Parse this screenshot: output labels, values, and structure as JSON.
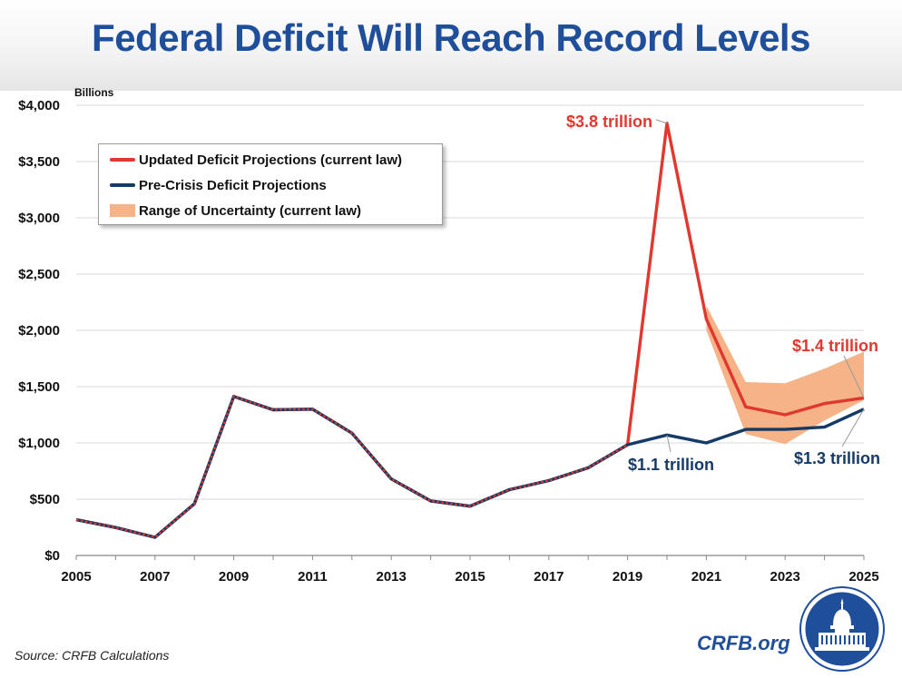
{
  "title": "Federal Deficit Will Reach Record Levels",
  "source": "Source: CRFB Calculations",
  "brand": "CRFB.org",
  "colors": {
    "updated": "#e0382e",
    "precrisis": "#163a66",
    "range": "#f6b387",
    "title": "#1f4e9b"
  },
  "chart_data": {
    "type": "line",
    "ylabel": "Billions",
    "ylim": [
      0,
      4000
    ],
    "yticks": [
      0,
      500,
      1000,
      1500,
      2000,
      2500,
      3000,
      3500,
      4000
    ],
    "ytick_labels": [
      "$0",
      "$500",
      "$1,000",
      "$1,500",
      "$2,000",
      "$2,500",
      "$3,000",
      "$3,500",
      "$4,000"
    ],
    "xlim": [
      2005,
      2025
    ],
    "xticks": [
      2005,
      2007,
      2009,
      2011,
      2013,
      2015,
      2017,
      2019,
      2021,
      2023,
      2025
    ],
    "xtick_labels": [
      "2005",
      "2007",
      "2009",
      "2011",
      "2013",
      "2015",
      "2017",
      "2019",
      "2021",
      "2023",
      "2025"
    ],
    "grid": true,
    "legend_position": "top-left",
    "series": [
      {
        "name": "Updated Deficit Projections (current law)",
        "x": [
          2005,
          2006,
          2007,
          2008,
          2009,
          2010,
          2011,
          2012,
          2013,
          2014,
          2015,
          2016,
          2017,
          2018,
          2019,
          2020,
          2021,
          2022,
          2023,
          2024,
          2025
        ],
        "values": [
          318,
          248,
          161,
          459,
          1413,
          1294,
          1300,
          1087,
          680,
          485,
          438,
          585,
          665,
          779,
          984,
          3840,
          2100,
          1320,
          1250,
          1350,
          1400
        ]
      },
      {
        "name": "Pre-Crisis Deficit Projections",
        "x": [
          2005,
          2006,
          2007,
          2008,
          2009,
          2010,
          2011,
          2012,
          2013,
          2014,
          2015,
          2016,
          2017,
          2018,
          2019,
          2020,
          2021,
          2022,
          2023,
          2024,
          2025
        ],
        "values": [
          318,
          248,
          161,
          459,
          1413,
          1294,
          1300,
          1087,
          680,
          485,
          438,
          585,
          665,
          779,
          984,
          1070,
          1000,
          1120,
          1120,
          1140,
          1300
        ]
      }
    ],
    "range": {
      "name": "Range of Uncertainty (current law)",
      "x": [
        2021,
        2022,
        2023,
        2024,
        2025
      ],
      "low": [
        2000,
        1080,
        990,
        1200,
        1380
      ],
      "high": [
        2220,
        1540,
        1530,
        1660,
        1810
      ]
    },
    "annotations": [
      {
        "text": "$3.8 trillion",
        "x": 2020,
        "y": 3840,
        "series": "updated"
      },
      {
        "text": "$1.4 trillion",
        "x": 2025,
        "y": 1400,
        "series": "updated"
      },
      {
        "text": "$1.1 trillion",
        "x": 2020,
        "y": 1070,
        "series": "precrisis"
      },
      {
        "text": "$1.3 trillion",
        "x": 2025,
        "y": 1300,
        "series": "precrisis"
      }
    ]
  }
}
